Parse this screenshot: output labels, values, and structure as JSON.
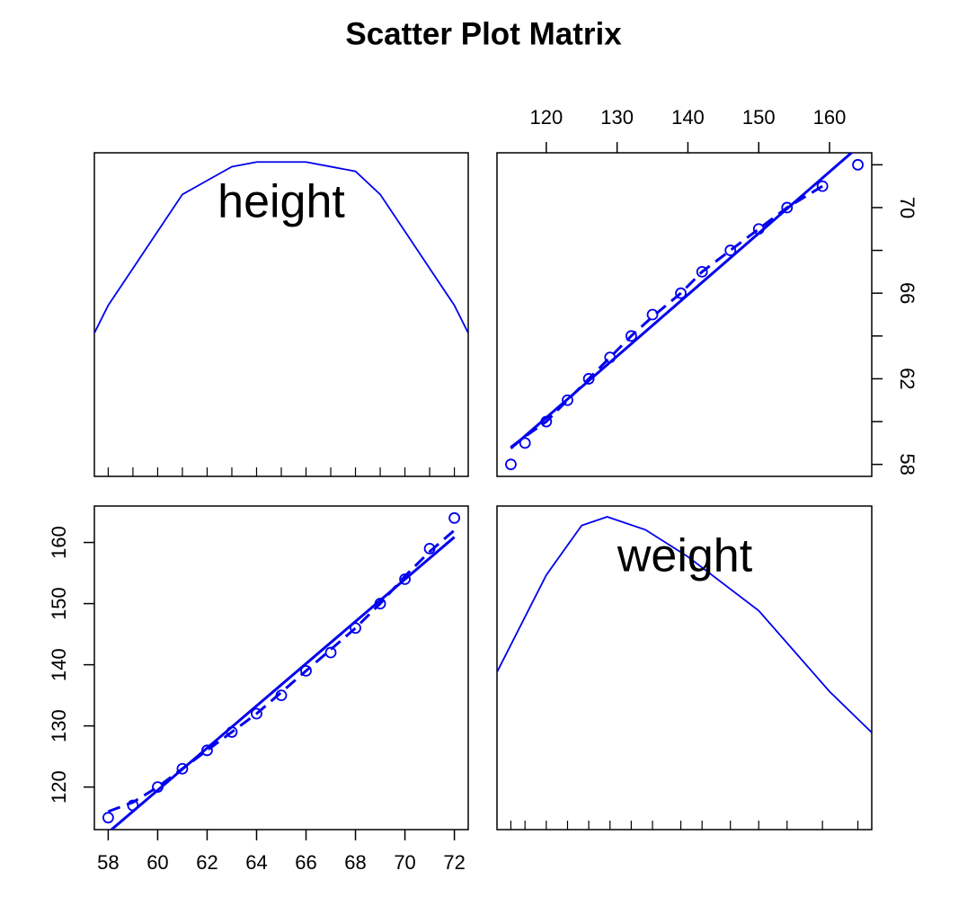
{
  "chart_data": {
    "type": "scatter_matrix",
    "title": "Scatter Plot Matrix",
    "color": "#0000ee",
    "panels": [
      {
        "type": "density",
        "label": "height",
        "x": [
          57.44,
          58,
          59,
          60,
          61,
          62,
          63,
          64,
          65,
          66,
          67,
          68,
          69,
          70,
          71,
          72,
          72.56
        ],
        "y": [
          0.031,
          0.037,
          0.045,
          0.053,
          0.061,
          0.064,
          0.067,
          0.068,
          0.068,
          0.068,
          0.067,
          0.066,
          0.061,
          0.053,
          0.045,
          0.037,
          0.031
        ],
        "xlim": [
          57.44,
          72.56
        ],
        "ylim": [
          0,
          0.07
        ],
        "rug": [
          58,
          59,
          60,
          61,
          62,
          63,
          64,
          65,
          66,
          67,
          68,
          69,
          70,
          71,
          72
        ]
      },
      {
        "type": "scatter",
        "x": [
          115,
          117,
          120,
          123,
          126,
          129,
          132,
          135,
          139,
          142,
          146,
          150,
          154,
          159,
          164
        ],
        "y": [
          58,
          59,
          60,
          61,
          62,
          63,
          64,
          65,
          66,
          67,
          68,
          69,
          70,
          71,
          72
        ],
        "xlim": [
          113.04,
          165.96
        ],
        "ylim": [
          57.44,
          72.56
        ],
        "xaxis": "top",
        "yaxis": "right",
        "xticks": [
          120,
          130,
          140,
          150,
          160
        ],
        "yticks": [
          58,
          62,
          66,
          70
        ],
        "yminorticks": [
          60,
          64,
          68,
          72
        ],
        "fit": {
          "x": [
            115,
            164
          ],
          "y": [
            58.75,
            72.82
          ]
        },
        "smooth": {
          "x": [
            115,
            117,
            120,
            123,
            126,
            129,
            132,
            135,
            139,
            142,
            146,
            150,
            154,
            159
          ],
          "y": [
            58.8,
            59.3,
            60,
            61,
            62,
            63,
            64,
            64.9,
            66,
            67,
            68,
            69,
            70,
            71
          ]
        }
      },
      {
        "type": "scatter",
        "x": [
          58,
          59,
          60,
          61,
          62,
          63,
          64,
          65,
          66,
          67,
          68,
          69,
          70,
          71,
          72
        ],
        "y": [
          115,
          117,
          120,
          123,
          126,
          129,
          132,
          135,
          139,
          142,
          146,
          150,
          154,
          159,
          164
        ],
        "xlim": [
          57.44,
          72.56
        ],
        "ylim": [
          113.04,
          165.96
        ],
        "xaxis": "bottom",
        "yaxis": "left",
        "xticks": [
          58,
          60,
          62,
          64,
          66,
          68,
          70,
          72
        ],
        "yticks": [
          120,
          130,
          140,
          150,
          160
        ],
        "fit": {
          "x": [
            58,
            72
          ],
          "y": [
            112.58,
            160.88
          ]
        },
        "smooth": {
          "x": [
            58,
            59,
            60,
            61,
            62,
            63,
            64,
            65,
            66,
            67,
            68,
            69,
            70,
            71,
            72
          ],
          "y": [
            116,
            117.5,
            120,
            123,
            126,
            129,
            132,
            135.5,
            139,
            142.5,
            146,
            150,
            154.5,
            158.5,
            162
          ]
        }
      },
      {
        "type": "density",
        "label": "weight",
        "x": [
          113.04,
          120,
          125,
          128.6,
          134,
          140,
          150,
          160,
          165.96
        ],
        "y": [
          0.0146,
          0.0236,
          0.0282,
          0.029,
          0.0278,
          0.0253,
          0.0203,
          0.0128,
          0.009
        ],
        "xlim": [
          113.04,
          165.96
        ],
        "ylim": [
          0,
          0.03
        ],
        "rug": [
          115,
          117,
          120,
          123,
          126,
          129,
          132,
          135,
          139,
          142,
          146,
          150,
          154,
          159,
          164
        ]
      }
    ]
  }
}
